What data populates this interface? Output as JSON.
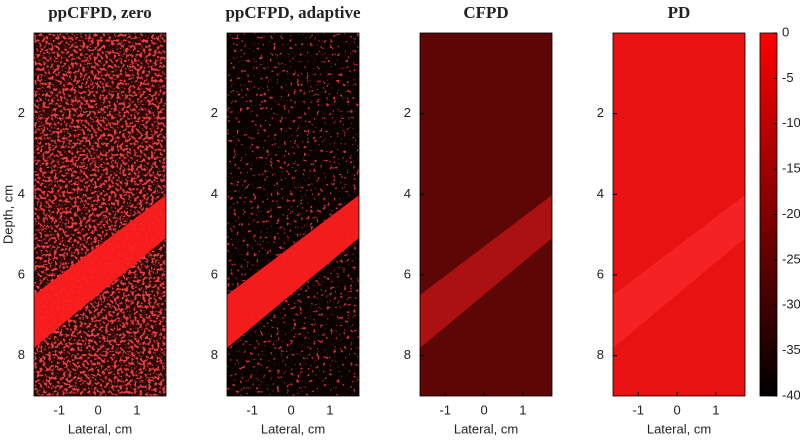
{
  "chart_data": [
    {
      "type": "image",
      "title": "ppCFPD, zero",
      "xlabel": "Lateral, cm",
      "ylabel": "Depth, cm",
      "xlim": [
        -1.65,
        1.75
      ],
      "xticks": [
        -1,
        0,
        1
      ],
      "ylim": [
        0,
        9
      ],
      "yticks": [
        2,
        4,
        6,
        8
      ],
      "y_reversed": true
    },
    {
      "type": "image",
      "title": "ppCFPD, adaptive",
      "xlabel": "Lateral, cm",
      "xlim": [
        -1.65,
        1.75
      ],
      "xticks": [
        -1,
        0,
        1
      ],
      "ylim": [
        0,
        9
      ],
      "yticks": [
        2,
        4,
        6,
        8
      ],
      "y_reversed": true
    },
    {
      "type": "image",
      "title": "CFPD",
      "xlabel": "Lateral, cm",
      "xlim": [
        -1.65,
        1.75
      ],
      "xticks": [
        -1,
        0,
        1
      ],
      "ylim": [
        0,
        9
      ],
      "yticks": [
        2,
        4,
        6,
        8
      ],
      "y_reversed": true
    },
    {
      "type": "image",
      "title": "PD",
      "xlabel": "Lateral, cm",
      "xlim": [
        -1.65,
        1.75
      ],
      "xticks": [
        -1,
        0,
        1
      ],
      "ylim": [
        0,
        9
      ],
      "yticks": [
        2,
        4,
        6,
        8
      ],
      "y_reversed": true
    },
    {
      "type": "colorbar",
      "ylim": [
        -40,
        0
      ],
      "yticks": [
        0,
        -5,
        -10,
        -15,
        -20,
        -25,
        -30,
        -35,
        -40
      ],
      "colors": [
        "#000000",
        "#ff0000"
      ]
    }
  ]
}
